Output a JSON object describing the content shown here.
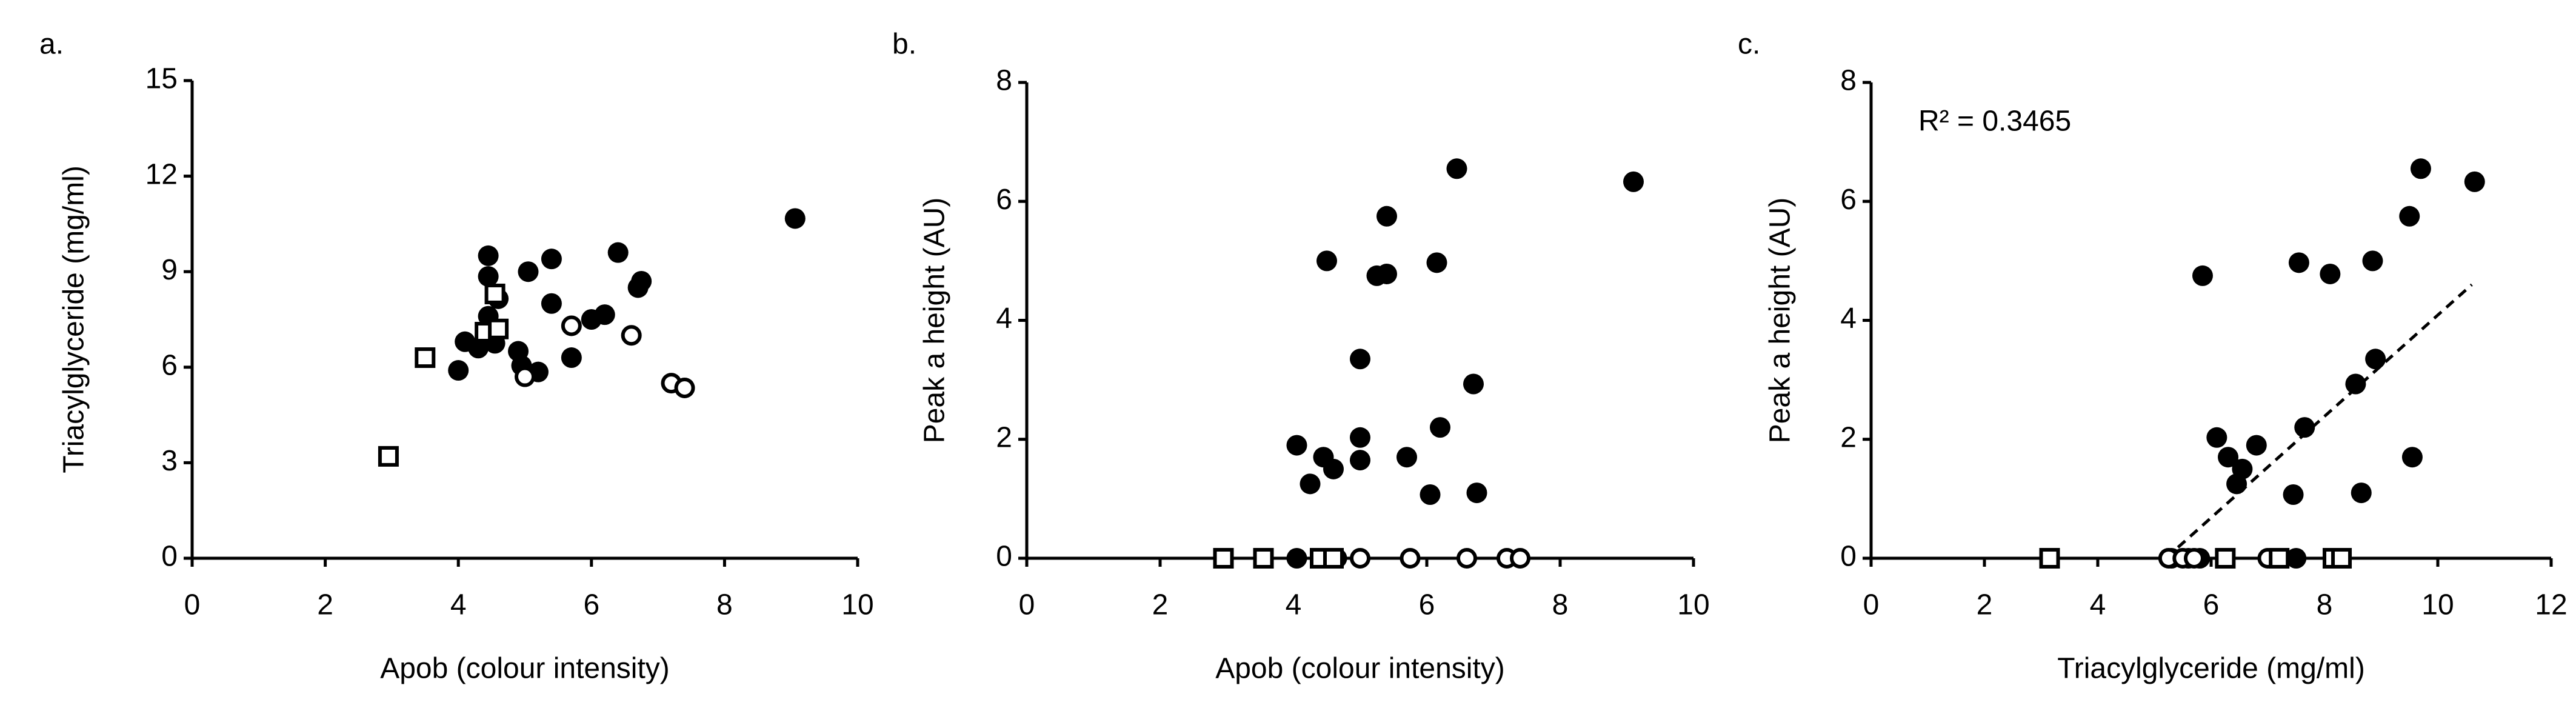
{
  "chart_data": [
    {
      "type": "scatter",
      "panel_label": "a.",
      "xlabel": "Apob (colour intensity)",
      "ylabel": "Triacylglyceride (mg/ml)",
      "xlim": [
        0,
        10
      ],
      "ylim": [
        0,
        15
      ],
      "xticks": [
        0,
        2,
        4,
        6,
        8,
        10
      ],
      "yticks": [
        0,
        3,
        6,
        9,
        12,
        15
      ],
      "series": [
        {
          "marker": "filled-circle",
          "color": "#000000",
          "x": [
            4.45,
            4.45,
            4.6,
            4.45,
            4.55,
            4.3,
            4.1,
            4.0,
            4.9,
            4.95,
            5.05,
            5.2,
            5.4,
            5.4,
            5.7,
            6.0,
            6.2,
            6.4,
            6.7,
            6.75,
            9.06
          ],
          "y": [
            9.5,
            8.85,
            8.15,
            7.6,
            6.75,
            6.6,
            6.8,
            5.9,
            6.5,
            6.05,
            9.0,
            5.85,
            9.4,
            8.0,
            6.3,
            7.5,
            7.65,
            9.6,
            8.5,
            8.7,
            10.67
          ]
        },
        {
          "marker": "open-circle",
          "color": "#000000",
          "x": [
            5.7,
            5.0,
            6.6,
            7.2,
            7.4
          ],
          "y": [
            7.3,
            5.7,
            7.0,
            5.5,
            5.35
          ]
        },
        {
          "marker": "open-square",
          "color": "#000000",
          "x": [
            2.95,
            3.5,
            4.4,
            4.55,
            4.6
          ],
          "y": [
            3.2,
            6.3,
            7.1,
            8.3,
            7.2
          ]
        }
      ]
    },
    {
      "type": "scatter",
      "panel_label": "b.",
      "xlabel": "Apob (colour intensity)",
      "ylabel": "Peak a height (AU)",
      "xlim": [
        0,
        10
      ],
      "ylim": [
        0,
        8
      ],
      "xticks": [
        0,
        2,
        4,
        6,
        8,
        10
      ],
      "yticks": [
        0,
        2,
        4,
        6,
        8
      ],
      "series": [
        {
          "marker": "filled-circle",
          "color": "#000000",
          "x": [
            6.45,
            9.1,
            5.4,
            4.5,
            6.15,
            5.25,
            5.4,
            5.0,
            6.7,
            6.2,
            4.05,
            5.0,
            4.45,
            4.6,
            4.25,
            5.0,
            5.7,
            6.05,
            6.75,
            4.05,
            4.4,
            4.5,
            4.55,
            4.65
          ],
          "y": [
            6.55,
            6.33,
            5.75,
            5.0,
            4.97,
            4.75,
            4.78,
            3.35,
            2.93,
            2.2,
            1.9,
            2.03,
            1.7,
            1.5,
            1.25,
            1.65,
            1.7,
            1.07,
            1.1,
            0,
            0,
            0,
            0,
            0
          ]
        },
        {
          "marker": "open-circle",
          "color": "#000000",
          "x": [
            5.0,
            5.75,
            6.6,
            7.2,
            7.4
          ],
          "y": [
            0,
            0,
            0,
            0,
            0
          ]
        },
        {
          "marker": "open-square",
          "color": "#000000",
          "x": [
            2.95,
            3.55,
            4.4,
            4.6
          ],
          "y": [
            0,
            0,
            0,
            0
          ]
        }
      ]
    },
    {
      "type": "scatter",
      "panel_label": "c.",
      "xlabel": "Triacylglyceride (mg/ml)",
      "ylabel": "Peak a height (AU)",
      "xlim": [
        0,
        12
      ],
      "ylim": [
        0,
        8
      ],
      "xticks": [
        0,
        2,
        4,
        6,
        8,
        10,
        12
      ],
      "yticks": [
        0,
        2,
        4,
        6,
        8
      ],
      "annotation": "R² = 0.3465",
      "trendline": {
        "x": [
          5.2,
          10.6
        ],
        "y": [
          0,
          4.6
        ],
        "color": "#000000"
      },
      "series": [
        {
          "marker": "filled-circle",
          "color": "#000000",
          "x": [
            9.7,
            10.65,
            9.5,
            5.85,
            7.55,
            8.1,
            8.85,
            8.9,
            8.55,
            7.65,
            6.1,
            6.8,
            6.3,
            6.55,
            6.45,
            9.55,
            7.45,
            8.65,
            5.3,
            5.6,
            5.8,
            7.1,
            7.5,
            8.2
          ],
          "y": [
            6.55,
            6.33,
            5.75,
            4.75,
            4.97,
            4.78,
            5.0,
            3.35,
            2.93,
            2.2,
            2.03,
            1.9,
            1.7,
            1.5,
            1.25,
            1.7,
            1.07,
            1.1,
            0,
            0,
            0,
            0,
            0,
            0
          ]
        },
        {
          "marker": "open-circle",
          "color": "#000000",
          "x": [
            5.25,
            5.5,
            5.7,
            7.0,
            7.25
          ],
          "y": [
            0,
            0,
            0,
            0,
            0
          ]
        },
        {
          "marker": "open-square",
          "color": "#000000",
          "x": [
            3.15,
            6.25,
            7.2,
            8.15,
            8.3
          ],
          "y": [
            0,
            0,
            0,
            0,
            0
          ]
        }
      ]
    }
  ]
}
